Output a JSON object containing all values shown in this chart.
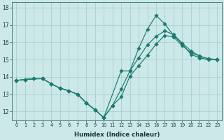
{
  "xlabel": "Humidex (Indice chaleur)",
  "ylabel": "",
  "xlim": [
    -0.5,
    23.5
  ],
  "ylim": [
    11.5,
    18.3
  ],
  "bg_color": "#cce8e8",
  "line_color": "#1a7a6e",
  "grid_color": "#aacfcf",
  "xticks": [
    0,
    1,
    2,
    3,
    4,
    5,
    6,
    7,
    8,
    9,
    10,
    11,
    12,
    13,
    14,
    15,
    16,
    17,
    18,
    19,
    20,
    21,
    22,
    23
  ],
  "yticks": [
    12,
    13,
    14,
    15,
    16,
    17,
    18
  ],
  "line1_x": [
    0,
    1,
    2,
    3,
    4,
    5,
    6,
    7,
    8,
    9,
    10,
    11,
    12,
    13,
    14,
    15,
    16,
    17,
    18,
    19,
    20,
    21,
    22,
    23
  ],
  "line1_y": [
    13.8,
    13.85,
    13.9,
    13.9,
    13.6,
    13.35,
    13.2,
    13.0,
    12.5,
    12.1,
    11.65,
    12.35,
    12.85,
    14.05,
    14.65,
    15.25,
    15.9,
    16.4,
    16.3,
    15.8,
    15.4,
    15.2,
    15.05,
    15.0
  ],
  "line2_x": [
    0,
    1,
    2,
    3,
    4,
    5,
    6,
    7,
    8,
    9,
    10,
    11,
    12,
    13,
    14,
    15,
    16,
    17,
    18,
    19,
    20,
    21,
    22,
    23
  ],
  "line2_y": [
    13.8,
    13.85,
    13.9,
    13.9,
    13.6,
    13.35,
    13.2,
    13.0,
    12.5,
    12.1,
    11.65,
    12.35,
    13.3,
    14.35,
    15.1,
    15.85,
    16.35,
    16.65,
    16.45,
    15.95,
    15.5,
    15.2,
    15.05,
    15.0
  ],
  "line3_x": [
    0,
    1,
    3,
    4,
    5,
    6,
    7,
    8,
    9,
    10,
    12,
    13,
    14,
    15,
    16,
    17,
    18,
    19,
    20,
    21,
    22,
    23
  ],
  "line3_y": [
    13.8,
    13.85,
    13.9,
    13.6,
    13.35,
    13.2,
    13.0,
    12.5,
    12.1,
    11.65,
    14.35,
    14.35,
    15.65,
    16.75,
    17.55,
    17.05,
    16.4,
    15.9,
    15.3,
    15.1,
    15.0,
    15.0
  ],
  "marker_size": 2.8,
  "lw": 0.85
}
